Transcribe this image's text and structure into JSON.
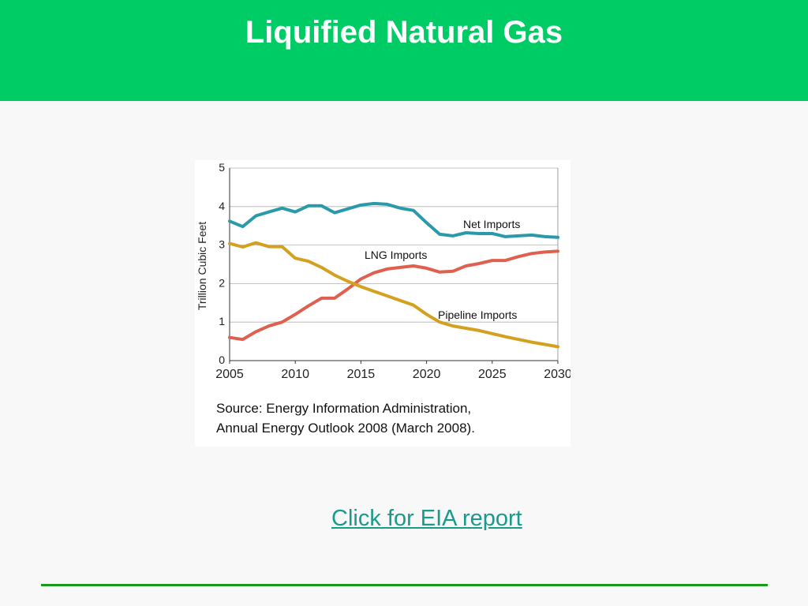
{
  "slide": {
    "title": "Liquified Natural Gas",
    "link_label": "Click for EIA report"
  },
  "colors": {
    "header_bg": "#00cc66",
    "net_imports": "#2a9aaa",
    "lng_imports": "#e06050",
    "pipeline_imports": "#d4a020",
    "link": "#1a9a8a",
    "footer_rule": "#1a9a1a"
  },
  "chart_data": {
    "type": "line",
    "title": "",
    "xlabel": "",
    "ylabel": "Trillion Cubic Feet",
    "xlim": [
      2005,
      2030
    ],
    "ylim": [
      0,
      5
    ],
    "x_ticks": [
      "2005",
      "2010",
      "2015",
      "2020",
      "2025",
      "2030"
    ],
    "y_ticks": [
      "0",
      "1",
      "2",
      "3",
      "4",
      "5"
    ],
    "grid": "horizontal",
    "x": [
      2005,
      2006,
      2007,
      2008,
      2009,
      2010,
      2011,
      2012,
      2013,
      2014,
      2015,
      2016,
      2017,
      2018,
      2019,
      2020,
      2021,
      2022,
      2023,
      2024,
      2025,
      2026,
      2027,
      2028,
      2029,
      2030
    ],
    "series": [
      {
        "name": "Net Imports",
        "color_key": "net_imports",
        "values": [
          3.62,
          3.48,
          3.76,
          3.86,
          3.96,
          3.86,
          4.02,
          4.02,
          3.84,
          3.94,
          4.04,
          4.08,
          4.06,
          3.96,
          3.9,
          3.58,
          3.28,
          3.24,
          3.32,
          3.3,
          3.3,
          3.22,
          3.24,
          3.26,
          3.22,
          3.2
        ]
      },
      {
        "name": "LNG Imports",
        "color_key": "lng_imports",
        "values": [
          0.6,
          0.55,
          0.75,
          0.9,
          1.0,
          1.2,
          1.42,
          1.62,
          1.62,
          1.86,
          2.12,
          2.28,
          2.38,
          2.42,
          2.46,
          2.4,
          2.3,
          2.32,
          2.46,
          2.52,
          2.6,
          2.6,
          2.7,
          2.78,
          2.82,
          2.84
        ]
      },
      {
        "name": "Pipeline Imports",
        "color_key": "pipeline_imports",
        "values": [
          3.04,
          2.95,
          3.06,
          2.96,
          2.96,
          2.66,
          2.58,
          2.42,
          2.22,
          2.06,
          1.92,
          1.8,
          1.68,
          1.56,
          1.44,
          1.2,
          1.0,
          0.9,
          0.84,
          0.78,
          0.7,
          0.62,
          0.55,
          0.48,
          0.42,
          0.36
        ]
      }
    ],
    "series_labels": [
      "Net Imports",
      "LNG Imports",
      "Pipeline Imports"
    ],
    "source_note": [
      "Source: Energy Information Administration,",
      "Annual Energy Outlook 2008 (March 2008)."
    ]
  }
}
